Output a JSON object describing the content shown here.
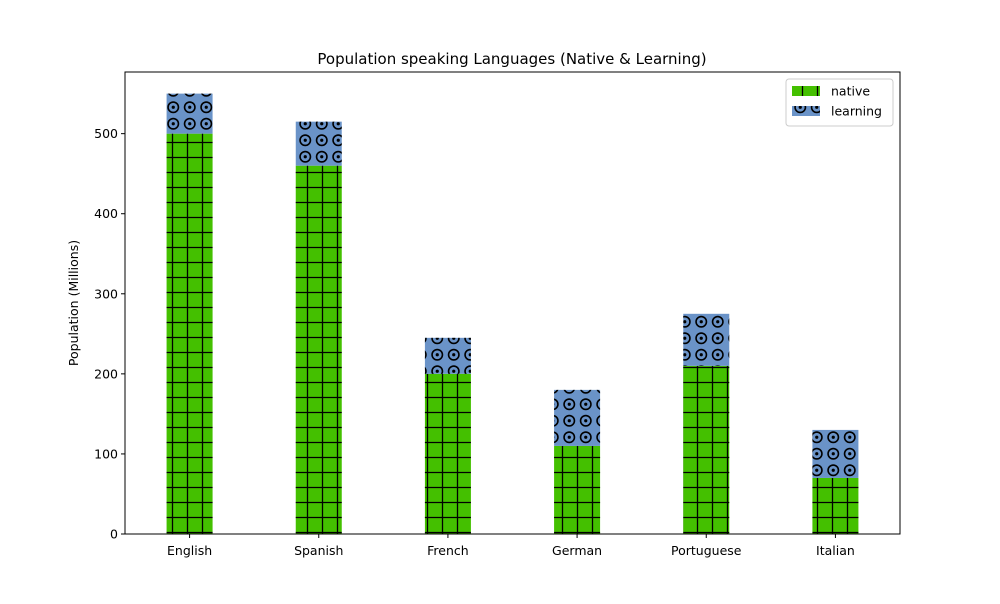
{
  "chart_data": {
    "type": "bar",
    "stacked": true,
    "title": "Population speaking Languages (Native & Learning)",
    "xlabel": "",
    "ylabel": "Population (Millions)",
    "ylim": [
      0,
      577
    ],
    "yticks": [
      0,
      100,
      200,
      300,
      400,
      500
    ],
    "categories": [
      "English",
      "Spanish",
      "French",
      "German",
      "Portuguese",
      "Italian"
    ],
    "series": [
      {
        "name": "native",
        "values": [
          500,
          460,
          200,
          110,
          210,
          70
        ],
        "color": "#44c000",
        "hatch": "grid"
      },
      {
        "name": "learning",
        "values": [
          50,
          55,
          45,
          70,
          65,
          60
        ],
        "color": "#6a93c8",
        "hatch": "circles"
      }
    ],
    "legend": {
      "position": "top-right",
      "entries": [
        "native",
        "learning"
      ]
    },
    "grid": false
  }
}
